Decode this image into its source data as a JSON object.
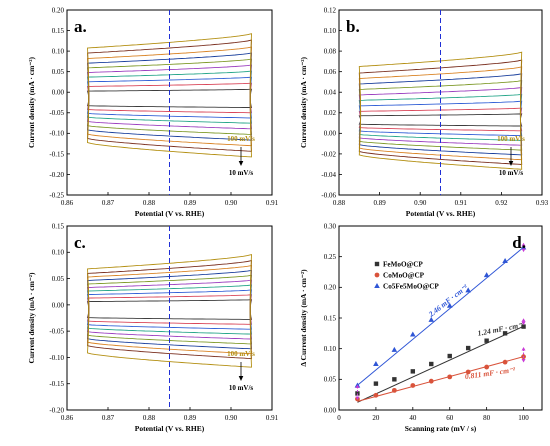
{
  "chart_data": [
    {
      "panel": "a.",
      "type": "line",
      "xlabel": "Potential (V vs. RHE)",
      "ylabel": "Current density (mA · cm⁻²)",
      "xlim": [
        0.86,
        0.91
      ],
      "ylim": [
        -0.25,
        0.2
      ],
      "xticks": [
        "0.86",
        "0.87",
        "0.88",
        "0.89",
        "0.90",
        "0.91"
      ],
      "yticks": [
        "-0.25",
        "-0.20",
        "-0.15",
        "-0.10",
        "-0.05",
        "0.00",
        "0.05",
        "0.10",
        "0.15",
        "0.20"
      ],
      "cv_window": [
        0.865,
        0.905
      ],
      "dashed_line_x": 0.885,
      "scan_rates": [
        10,
        20,
        30,
        40,
        50,
        60,
        70,
        80,
        90,
        100
      ],
      "upper_current_at_center": [
        0.005,
        0.018,
        0.031,
        0.044,
        0.057,
        0.07,
        0.083,
        0.096,
        0.111,
        0.125
      ],
      "lower_current_at_center": [
        -0.035,
        -0.046,
        -0.057,
        -0.068,
        -0.08,
        -0.092,
        -0.104,
        -0.116,
        -0.128,
        -0.14
      ],
      "annotation_high": "100 mV/s",
      "annotation_low": "10 mV/s"
    },
    {
      "panel": "b.",
      "type": "line",
      "xlabel": "Potential (V vs. RHE)",
      "ylabel": "Current density (mA · cm⁻²)",
      "xlim": [
        0.88,
        0.93
      ],
      "ylim": [
        -0.06,
        0.12
      ],
      "xticks": [
        "0.88",
        "0.89",
        "0.90",
        "0.91",
        "0.92",
        "0.93"
      ],
      "yticks": [
        "-0.06",
        "-0.04",
        "-0.02",
        "0.00",
        "0.02",
        "0.04",
        "0.06",
        "0.08",
        "0.10",
        "0.12"
      ],
      "cv_window": [
        0.885,
        0.925
      ],
      "dashed_line_x": 0.905,
      "scan_rates": [
        10,
        20,
        30,
        40,
        50,
        60,
        70,
        80,
        90,
        100
      ],
      "upper_current_at_center": [
        0.018,
        0.023,
        0.029,
        0.035,
        0.041,
        0.047,
        0.053,
        0.059,
        0.065,
        0.072
      ],
      "lower_current_at_center": [
        0.008,
        0.004,
        0.0,
        -0.004,
        -0.008,
        -0.012,
        -0.016,
        -0.02,
        -0.024,
        -0.028
      ],
      "annotation_high": "100 mV/s",
      "annotation_low": "10 mV/s"
    },
    {
      "panel": "c.",
      "type": "line",
      "xlabel": "Potential (V vs. RHE)",
      "ylabel": "Current density (mA · cm⁻²)",
      "xlim": [
        0.86,
        0.91
      ],
      "ylim": [
        -0.2,
        0.15
      ],
      "xticks": [
        "0.86",
        "0.87",
        "0.88",
        "0.89",
        "0.90",
        "0.91"
      ],
      "yticks": [
        "-0.20",
        "-0.15",
        "-0.10",
        "-0.05",
        "0.00",
        "0.05",
        "0.10",
        "0.15"
      ],
      "cv_window": [
        0.865,
        0.905
      ],
      "dashed_line_x": 0.885,
      "scan_rates": [
        10,
        20,
        30,
        40,
        50,
        60,
        70,
        80,
        90,
        100
      ],
      "upper_current_at_center": [
        0.008,
        0.016,
        0.024,
        0.032,
        0.04,
        0.048,
        0.056,
        0.064,
        0.072,
        0.082
      ],
      "lower_current_at_center": [
        -0.026,
        -0.034,
        -0.042,
        -0.05,
        -0.058,
        -0.066,
        -0.074,
        -0.082,
        -0.09,
        -0.105
      ],
      "annotation_high": "100 mV/s",
      "annotation_low": "10 mV/s"
    },
    {
      "panel": "d.",
      "type": "scatter",
      "xlabel": "Scanning rate (mV / s)",
      "ylabel": "Δ Current density (mA · cm⁻²)",
      "xlim": [
        0,
        110
      ],
      "ylim": [
        0,
        0.3
      ],
      "xticks": [
        "0",
        "20",
        "40",
        "60",
        "80",
        "100"
      ],
      "yticks": [
        "0.00",
        "0.05",
        "0.10",
        "0.15",
        "0.20",
        "0.25",
        "0.30"
      ],
      "x": [
        10,
        20,
        30,
        40,
        50,
        60,
        70,
        80,
        90,
        100
      ],
      "series": [
        {
          "name": "FeMoO@CP",
          "marker": "square",
          "color": "#333333",
          "values": [
            0.027,
            0.043,
            0.05,
            0.063,
            0.075,
            0.088,
            0.101,
            0.113,
            0.125,
            0.136
          ],
          "fit": [
            0.0125,
            0.1365
          ],
          "slope_label": "1.24 mF · cm⁻²"
        },
        {
          "name": "CoMoO@CP",
          "marker": "circle",
          "color": "#d9533b",
          "values": [
            0.018,
            0.024,
            0.032,
            0.04,
            0.047,
            0.054,
            0.062,
            0.07,
            0.078,
            0.087
          ],
          "fit": [
            0.014,
            0.087
          ],
          "slope_label": "0.811 mF · cm⁻²"
        },
        {
          "name": "Co5Fe5MoO@CP",
          "marker": "triangle",
          "color": "#2f56d6",
          "values": [
            0.04,
            0.075,
            0.098,
            0.123,
            0.147,
            0.17,
            0.195,
            0.22,
            0.243,
            0.265
          ],
          "fit": [
            0.0403,
            0.2653
          ],
          "slope_label": "2.46 mF · cm⁻²"
        }
      ]
    }
  ]
}
